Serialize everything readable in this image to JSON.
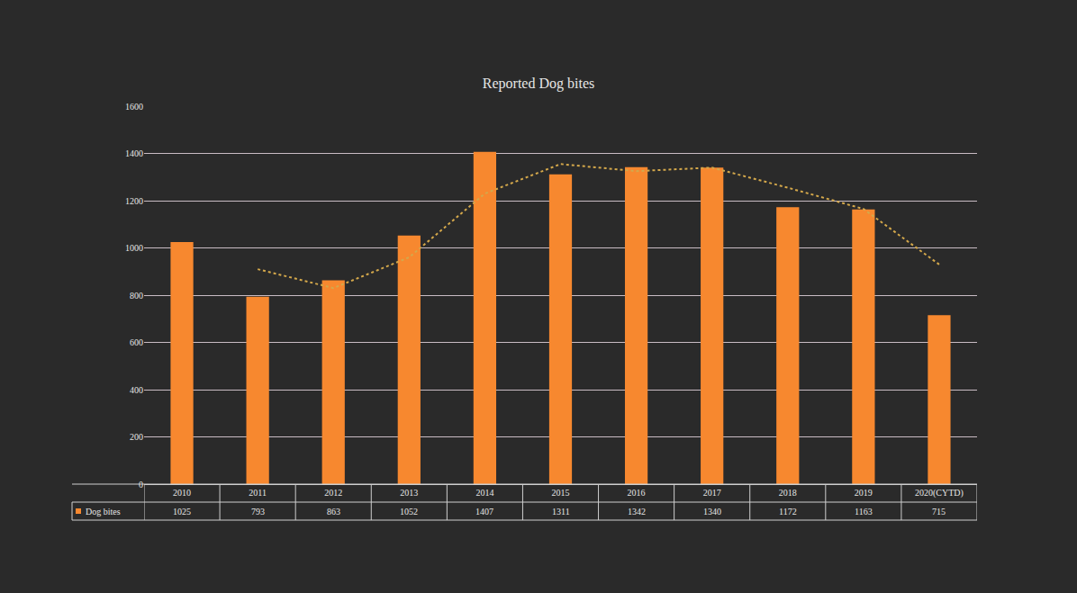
{
  "chart_data": {
    "type": "bar",
    "title": "Reported Dog bites",
    "categories": [
      "2010",
      "2011",
      "2012",
      "2013",
      "2014",
      "2015",
      "2016",
      "2017",
      "2018",
      "2019",
      "2020(CYTD)"
    ],
    "series": [
      {
        "name": "Dog bites",
        "type": "bar",
        "color": "#f7882f",
        "values": [
          1025,
          793,
          863,
          1052,
          1407,
          1311,
          1342,
          1340,
          1172,
          1163,
          715
        ]
      },
      {
        "type": "line",
        "line_style": "dotted",
        "color": "#d4a84b",
        "values": [
          null,
          910,
          830,
          960,
          1230,
          1355,
          1325,
          1340,
          1255,
          1165,
          930
        ]
      }
    ],
    "ylim": [
      0,
      1600
    ],
    "yticks": [
      0,
      200,
      400,
      600,
      800,
      1000,
      1200,
      1400,
      1600
    ],
    "grid": true,
    "data_labels": true
  }
}
